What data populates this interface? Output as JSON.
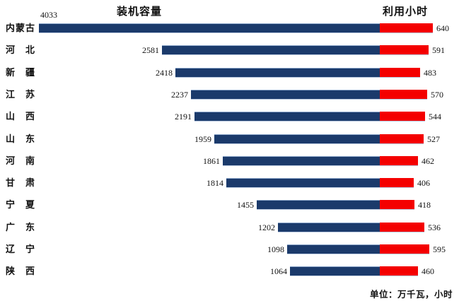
{
  "chart_data": {
    "type": "bar",
    "orientation": "horizontal-paired",
    "title_left": "装机容量",
    "title_right": "利用小时",
    "categories": [
      "内蒙古",
      "河北",
      "新疆",
      "江苏",
      "山西",
      "山东",
      "河南",
      "甘肃",
      "宁夏",
      "广东",
      "辽宁",
      "陕西"
    ],
    "series": [
      {
        "name": "装机容量",
        "side": "left",
        "color": "#1B3A6B",
        "values": [
          4033,
          2581,
          2418,
          2237,
          2191,
          1959,
          1861,
          1814,
          1455,
          1202,
          1098,
          1064
        ],
        "axis_range": [
          0,
          4033
        ]
      },
      {
        "name": "利用小时",
        "side": "right",
        "color": "#F40000",
        "values": [
          640,
          591,
          483,
          570,
          544,
          527,
          462,
          406,
          418,
          536,
          595,
          460
        ],
        "axis_range": [
          0,
          640
        ]
      }
    ],
    "footer_note": "单位：万千瓦，小时",
    "layout": {
      "grid": false,
      "legend_position": "top",
      "value_labels": true
    }
  }
}
